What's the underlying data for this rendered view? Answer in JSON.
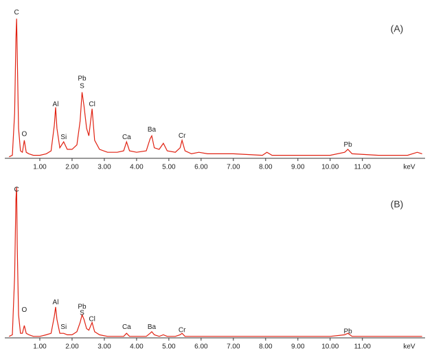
{
  "chart_data": [
    {
      "type": "line",
      "label": "(A)",
      "x_label": "keV",
      "x": [
        0.05,
        0.15,
        0.22,
        0.26,
        0.28,
        0.3,
        0.34,
        0.4,
        0.46,
        0.52,
        0.58,
        0.66,
        0.8,
        1.0,
        1.2,
        1.35,
        1.45,
        1.49,
        1.53,
        1.62,
        1.74,
        1.85,
        2.0,
        2.15,
        2.25,
        2.31,
        2.37,
        2.45,
        2.52,
        2.62,
        2.7,
        2.85,
        3.1,
        3.4,
        3.6,
        3.69,
        3.78,
        4.0,
        4.3,
        4.42,
        4.47,
        4.55,
        4.7,
        4.83,
        4.95,
        5.2,
        5.35,
        5.41,
        5.5,
        5.7,
        5.93,
        6.2,
        7.0,
        7.9,
        8.04,
        8.2,
        9.0,
        10.0,
        10.45,
        10.55,
        10.68,
        11.5,
        12.4,
        12.7,
        12.85
      ],
      "series": [
        {
          "color": "#e02010",
          "values": [
            1,
            2,
            30,
            80,
            93,
            70,
            20,
            5,
            4,
            12,
            4,
            3,
            2,
            2,
            3,
            5,
            22,
            34,
            20,
            7,
            11,
            6,
            6,
            9,
            25,
            44,
            35,
            20,
            15,
            33,
            12,
            6,
            4,
            4,
            5,
            11,
            5,
            4,
            5,
            13,
            15,
            7,
            6,
            10,
            5,
            4,
            7,
            12,
            5,
            3,
            4,
            3,
            3,
            2,
            4,
            2,
            2,
            2,
            4,
            6,
            3,
            2,
            2,
            4,
            3
          ]
        }
      ],
      "xlim": [
        0,
        12.9
      ],
      "ylim": [
        0,
        100
      ],
      "xticks": [
        {
          "value": 1,
          "label": "1.00"
        },
        {
          "value": 2,
          "label": "2.00"
        },
        {
          "value": 3,
          "label": "3.00"
        },
        {
          "value": 4,
          "label": "4.00"
        },
        {
          "value": 5,
          "label": "5.00"
        },
        {
          "value": 6,
          "label": "6.00"
        },
        {
          "value": 7,
          "label": "7.00"
        },
        {
          "value": 8,
          "label": "8.00"
        },
        {
          "value": 9,
          "label": "9.00"
        },
        {
          "value": 10,
          "label": "10.00"
        },
        {
          "value": 11,
          "label": "11.00"
        }
      ],
      "annotations": [
        {
          "text": "C",
          "x": 0.28,
          "y": 97
        },
        {
          "text": "O",
          "x": 0.52,
          "y": 16
        },
        {
          "text": "Al",
          "x": 1.49,
          "y": 36
        },
        {
          "text": "Si",
          "x": 1.74,
          "y": 14
        },
        {
          "text": "Pb",
          "x": 2.31,
          "y": 53
        },
        {
          "text": "S",
          "x": 2.31,
          "y": 48
        },
        {
          "text": "Cl",
          "x": 2.62,
          "y": 36
        },
        {
          "text": "Ca",
          "x": 3.69,
          "y": 14
        },
        {
          "text": "Ba",
          "x": 4.47,
          "y": 19
        },
        {
          "text": "Cr",
          "x": 5.41,
          "y": 15
        },
        {
          "text": "Pb",
          "x": 10.55,
          "y": 9
        }
      ]
    },
    {
      "type": "line",
      "label": "(B)",
      "x_label": "keV",
      "x": [
        0.05,
        0.15,
        0.22,
        0.26,
        0.28,
        0.3,
        0.34,
        0.4,
        0.46,
        0.52,
        0.58,
        0.66,
        0.8,
        1.0,
        1.2,
        1.35,
        1.45,
        1.49,
        1.53,
        1.62,
        1.74,
        1.85,
        2.0,
        2.15,
        2.25,
        2.31,
        2.37,
        2.45,
        2.52,
        2.62,
        2.7,
        2.85,
        3.1,
        3.4,
        3.6,
        3.69,
        3.78,
        4.0,
        4.3,
        4.42,
        4.47,
        4.55,
        4.7,
        4.83,
        4.95,
        5.2,
        5.35,
        5.41,
        5.5,
        5.7,
        5.93,
        6.2,
        7.0,
        7.9,
        8.04,
        8.2,
        9.0,
        10.0,
        10.45,
        10.55,
        10.68,
        11.5,
        12.4,
        12.7,
        12.85
      ],
      "series": [
        {
          "color": "#e02010",
          "values": [
            1,
            2,
            40,
            90,
            98,
            60,
            15,
            3,
            3,
            8,
            3,
            2,
            1,
            1,
            2,
            3,
            14,
            20,
            12,
            3,
            3,
            2,
            2,
            4,
            10,
            15,
            12,
            6,
            5,
            10,
            4,
            2,
            1,
            1,
            1,
            3,
            1,
            1,
            1,
            3,
            4,
            2,
            1,
            2,
            1,
            1,
            2,
            3,
            1,
            1,
            1,
            1,
            1,
            1,
            1,
            1,
            1,
            1,
            2,
            3,
            1,
            1,
            1,
            1,
            1
          ]
        }
      ],
      "xlim": [
        0,
        12.9
      ],
      "ylim": [
        0,
        100
      ],
      "xticks": [
        {
          "value": 1,
          "label": "1.00"
        },
        {
          "value": 2,
          "label": "2.00"
        },
        {
          "value": 3,
          "label": "3.00"
        },
        {
          "value": 4,
          "label": "4.00"
        },
        {
          "value": 5,
          "label": "5.00"
        },
        {
          "value": 6,
          "label": "6.00"
        },
        {
          "value": 7,
          "label": "7.00"
        },
        {
          "value": 8,
          "label": "8.00"
        },
        {
          "value": 9,
          "label": "9.00"
        },
        {
          "value": 10,
          "label": "10.00"
        },
        {
          "value": 11,
          "label": "11.00"
        }
      ],
      "annotations": [
        {
          "text": "C",
          "x": 0.28,
          "y": 96
        },
        {
          "text": "O",
          "x": 0.52,
          "y": 18
        },
        {
          "text": "Al",
          "x": 1.49,
          "y": 23
        },
        {
          "text": "Si",
          "x": 1.74,
          "y": 7
        },
        {
          "text": "Pb",
          "x": 2.31,
          "y": 20
        },
        {
          "text": "S",
          "x": 2.31,
          "y": 16
        },
        {
          "text": "Cl",
          "x": 2.62,
          "y": 12
        },
        {
          "text": "Ca",
          "x": 3.69,
          "y": 7
        },
        {
          "text": "Ba",
          "x": 4.47,
          "y": 7
        },
        {
          "text": "Cr",
          "x": 5.41,
          "y": 5
        },
        {
          "text": "Pb",
          "x": 10.55,
          "y": 4
        }
      ]
    }
  ]
}
